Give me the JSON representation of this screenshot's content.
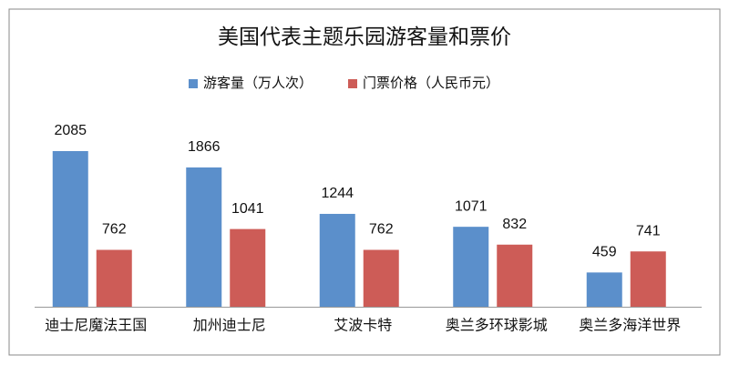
{
  "chart_data": {
    "type": "bar",
    "title": "美国代表主题乐园游客量和票价",
    "categories": [
      "迪士尼魔法王国",
      "加州迪士尼",
      "艾波卡特",
      "奥兰多环球影城",
      "奥兰多海洋世界"
    ],
    "series": [
      {
        "name": "游客量（万人次）",
        "color": "#5b8fcb",
        "values": [
          2085,
          1866,
          1244,
          1071,
          459
        ]
      },
      {
        "name": "门票价格（人民币元）",
        "color": "#cd5c57",
        "values": [
          762,
          1041,
          762,
          832,
          741
        ]
      }
    ],
    "legend": "top"
  }
}
